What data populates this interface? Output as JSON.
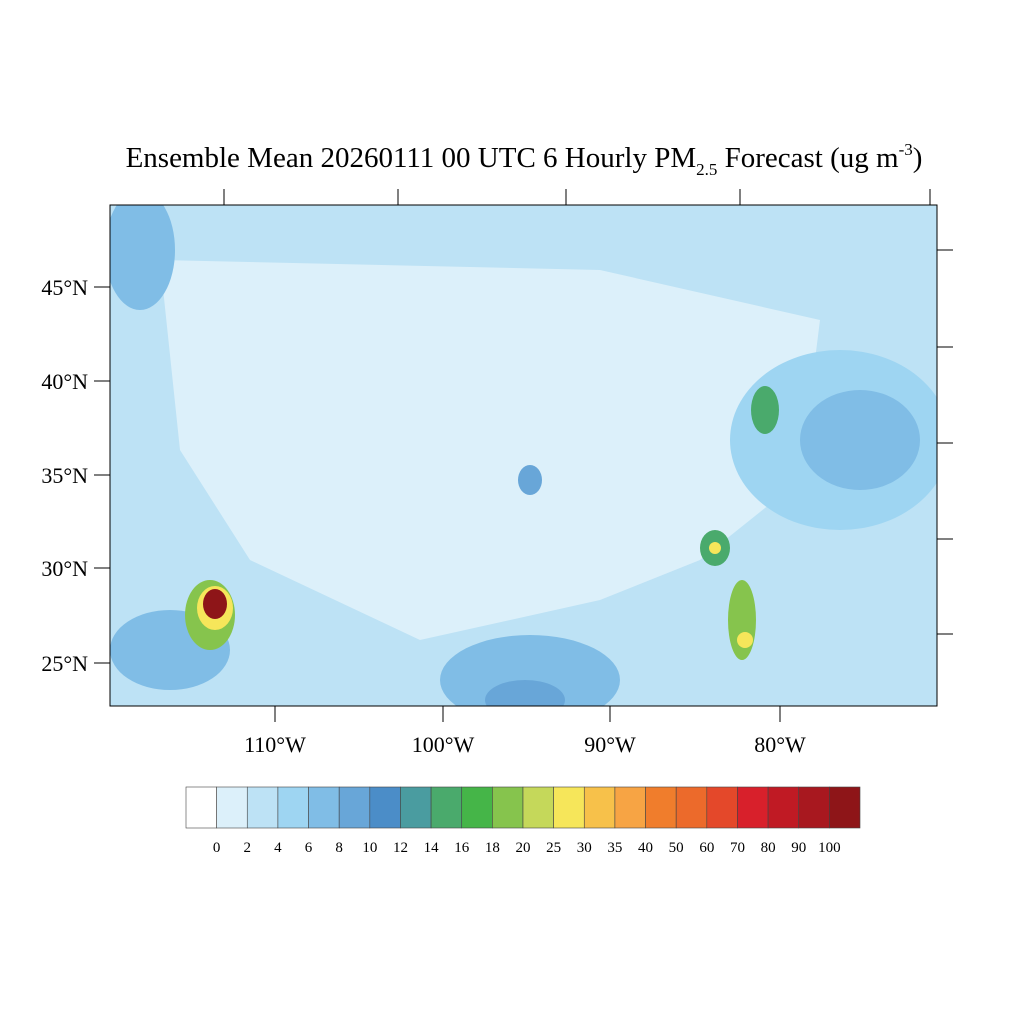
{
  "title": {
    "main": "Ensemble Mean 20260111 00 UTC 6 Hourly PM",
    "subscript": "2.5",
    "middle": " Forecast (ug m",
    "superscript": "-3",
    "end": ")"
  },
  "lat_labels": [
    "45°N",
    "40°N",
    "35°N",
    "30°N",
    "25°N"
  ],
  "lon_labels": [
    "110°W",
    "100°W",
    "90°W",
    "80°W"
  ],
  "colorbar": {
    "levels": [
      0,
      2,
      4,
      6,
      8,
      10,
      12,
      14,
      16,
      18,
      20,
      25,
      30,
      35,
      40,
      50,
      60,
      70,
      80,
      90,
      100
    ],
    "colors": [
      "#ffffff",
      "#dcf0fa",
      "#bde2f5",
      "#9ed5f2",
      "#80bde6",
      "#68a6d8",
      "#4b8dc8",
      "#4a9ca0",
      "#4aaa6c",
      "#45b548",
      "#86c44d",
      "#c5d85a",
      "#f6e65a",
      "#f7c14a",
      "#f7a444",
      "#f07d2c",
      "#ec6a2b",
      "#e4482a",
      "#d8202b",
      "#c01a24",
      "#a8181f",
      "#8e1518"
    ]
  }
}
